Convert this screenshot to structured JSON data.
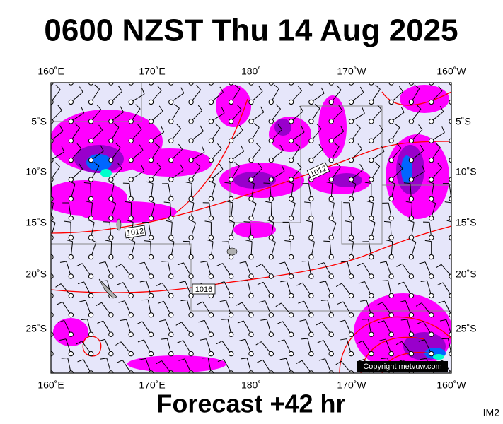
{
  "title": "0600 NZST Thu 14 Aug 2025",
  "map": {
    "longitude_labels": [
      "160˚E",
      "170˚E",
      "180˚",
      "170˚W",
      "160˚W"
    ],
    "latitude_labels": [
      "5˚S",
      "10˚S",
      "15˚S",
      "20˚S",
      "25˚S"
    ],
    "isobar_labels": [
      "1012",
      "1012",
      "1016"
    ],
    "copyright": "Copyright metvuw.com"
  },
  "footer": {
    "forecast": "Forecast +42 hr",
    "image_id": "IM2"
  }
}
